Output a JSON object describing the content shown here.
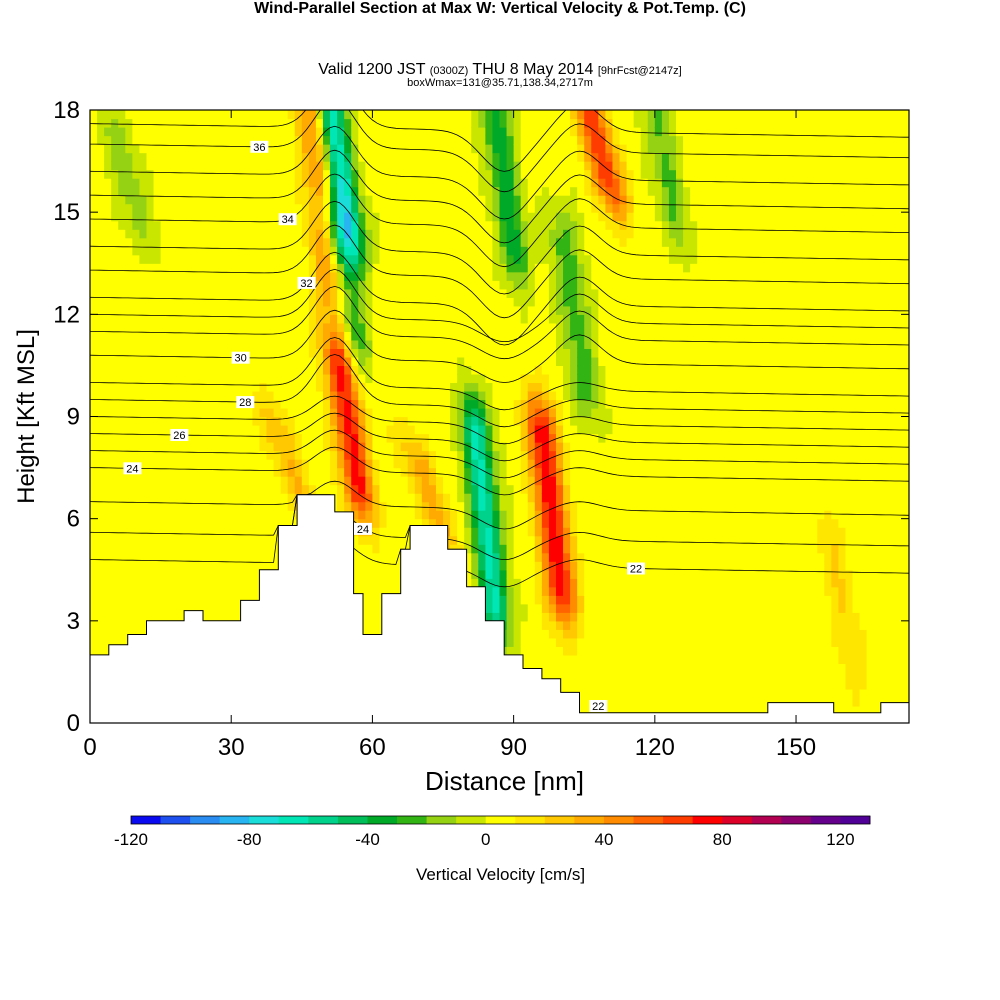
{
  "title": {
    "main": "Wind-Parallel Section at Max W: Vertical Velocity & Pot.Temp.",
    "copyright": "(C)",
    "valid_prefix": "Valid 1200 JST",
    "valid_utc": "(0300Z)",
    "valid_date": "THU 8 May 2014",
    "forecast": "[9hrFcst@2147z]",
    "box": "boxWmax=131@35.71,138.34,2717m"
  },
  "chart_data": {
    "type": "heatmap",
    "xlabel": "Distance [nm]",
    "ylabel": "Height [Kft MSL]",
    "xlim": [
      0,
      174
    ],
    "ylim": [
      0,
      18
    ],
    "xticks": [
      0,
      30,
      60,
      90,
      120,
      150
    ],
    "yticks": [
      0,
      3,
      6,
      9,
      12,
      15,
      18
    ],
    "colorbar": {
      "label": "Vertical Velocity [cm/s]",
      "range": [
        -120,
        130
      ],
      "step": 10,
      "tick_labels": [
        -120,
        -80,
        -40,
        0,
        40,
        80,
        120
      ],
      "colors": [
        "#0a0af0",
        "#1e50f0",
        "#2a8cf0",
        "#28b4f0",
        "#1adcd8",
        "#00e6b4",
        "#00d28c",
        "#00be5a",
        "#00aa28",
        "#32b414",
        "#96d214",
        "#c8e600",
        "#ffff00",
        "#ffe600",
        "#ffc800",
        "#ffaa00",
        "#ff8c00",
        "#ff6400",
        "#ff3c00",
        "#ff0000",
        "#dc0028",
        "#b40050",
        "#8c006e",
        "#64008c",
        "#500096"
      ]
    },
    "velocity_features": [
      {
        "x": 53,
        "y0": 14.5,
        "y1": 18,
        "w": -75
      },
      {
        "x": 54,
        "y0": 11.5,
        "y1": 14.5,
        "w": -35
      },
      {
        "x": 55,
        "y0": 7.0,
        "y1": 10.5,
        "w": 70
      },
      {
        "x": 49,
        "y0": 13.0,
        "y1": 18,
        "w": 45
      },
      {
        "x": 84,
        "y0": 3.5,
        "y1": 8.5,
        "w": -65
      },
      {
        "x": 88,
        "y0": 14.0,
        "y1": 18,
        "w": -40
      },
      {
        "x": 98,
        "y0": 4.0,
        "y1": 8.5,
        "w": 75
      },
      {
        "x": 108,
        "y0": 16.0,
        "y1": 18,
        "w": 65
      },
      {
        "x": 103,
        "y0": 10.0,
        "y1": 14.0,
        "w": -30
      },
      {
        "x": 72,
        "y0": 6.0,
        "y1": 7.5,
        "w": 30
      },
      {
        "x": 42,
        "y0": 7.0,
        "y1": 8.5,
        "w": 25
      },
      {
        "x": 122,
        "y0": 15.0,
        "y1": 18,
        "w": -25
      },
      {
        "x": 8,
        "y0": 15.0,
        "y1": 17,
        "w": -20
      },
      {
        "x": 160,
        "y0": 2.0,
        "y1": 5.0,
        "w": 15
      }
    ],
    "terrain": [
      {
        "x": 0,
        "h": 2.0
      },
      {
        "x": 4,
        "h": 2.3
      },
      {
        "x": 8,
        "h": 2.6
      },
      {
        "x": 12,
        "h": 3.0
      },
      {
        "x": 20,
        "h": 3.3
      },
      {
        "x": 24,
        "h": 3.0
      },
      {
        "x": 32,
        "h": 3.6
      },
      {
        "x": 36,
        "h": 4.5
      },
      {
        "x": 40,
        "h": 5.8
      },
      {
        "x": 44,
        "h": 6.7
      },
      {
        "x": 52,
        "h": 6.2
      },
      {
        "x": 56,
        "h": 3.8
      },
      {
        "x": 58,
        "h": 2.6
      },
      {
        "x": 62,
        "h": 3.8
      },
      {
        "x": 66,
        "h": 5.1
      },
      {
        "x": 68,
        "h": 5.8
      },
      {
        "x": 76,
        "h": 5.1
      },
      {
        "x": 80,
        "h": 4.0
      },
      {
        "x": 84,
        "h": 3.0
      },
      {
        "x": 88,
        "h": 2.0
      },
      {
        "x": 92,
        "h": 1.6
      },
      {
        "x": 96,
        "h": 1.3
      },
      {
        "x": 100,
        "h": 0.9
      },
      {
        "x": 104,
        "h": 0.3
      },
      {
        "x": 144,
        "h": 0.6
      },
      {
        "x": 158,
        "h": 0.3
      },
      {
        "x": 168,
        "h": 0.6
      },
      {
        "x": 174,
        "h": 0.6
      }
    ],
    "theta_contours": [
      {
        "label": "22",
        "base": 4.8,
        "label_x": 116,
        "label2_x": 108,
        "label2_y": 0.5
      },
      {
        "label": "24",
        "base": 7.5,
        "label_x": 9,
        "label2_x": 58,
        "label2_y": 5.7
      },
      {
        "label": "26",
        "base": 8.5,
        "label_x": 19
      },
      {
        "label": "28",
        "base": 9.5,
        "label_x": 33
      },
      {
        "label": "30",
        "base": 10.8,
        "label_x": 32
      },
      {
        "label": "32",
        "base": 12.5,
        "label_x": 46
      },
      {
        "label": "34",
        "base": 14.8,
        "label_x": 42
      },
      {
        "label": "36",
        "base": 17.0,
        "label_x": 36
      }
    ]
  }
}
